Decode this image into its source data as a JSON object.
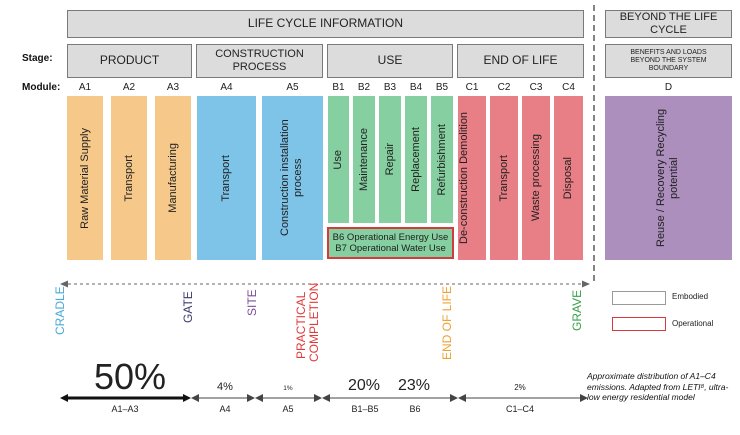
{
  "headers": {
    "life_cycle": "LIFE CYCLE INFORMATION",
    "beyond": "BEYOND THE LIFE CYCLE"
  },
  "row_labels": {
    "stage": "Stage:",
    "module": "Module:"
  },
  "stages": {
    "product": "PRODUCT",
    "construction": "CONSTRUCTION PROCESS",
    "use": "USE",
    "end_of_life": "END OF LIFE",
    "beyond": "BENEFITS AND LOADS BEYOND THE SYSTEM BOUNDARY"
  },
  "modules": [
    {
      "code": "A1",
      "label": "Raw Material Supply",
      "color": "#f6c98a"
    },
    {
      "code": "A2",
      "label": "Transport",
      "color": "#f6c98a"
    },
    {
      "code": "A3",
      "label": "Manufacturing",
      "color": "#f6c98a"
    },
    {
      "code": "A4",
      "label": "Transport",
      "color": "#7ec3e8"
    },
    {
      "code": "A5",
      "label": "Construction installation process",
      "color": "#7ec3e8"
    },
    {
      "code": "B1",
      "label": "Use",
      "color": "#86cfa0"
    },
    {
      "code": "B2",
      "label": "Maintenance",
      "color": "#86cfa0"
    },
    {
      "code": "B3",
      "label": "Repair",
      "color": "#86cfa0"
    },
    {
      "code": "B4",
      "label": "Replacement",
      "color": "#86cfa0"
    },
    {
      "code": "B5",
      "label": "Refurbishment",
      "color": "#86cfa0"
    },
    {
      "code": "C1",
      "label": "De-construction Demolition",
      "color": "#e87f86"
    },
    {
      "code": "C2",
      "label": "Transport",
      "color": "#e87f86"
    },
    {
      "code": "C3",
      "label": "Waste processing",
      "color": "#e87f86"
    },
    {
      "code": "C4",
      "label": "Disposal",
      "color": "#e87f86"
    },
    {
      "code": "D",
      "label": "Reuse / Recovery Recycling potential",
      "color": "#ad8fbe"
    }
  ],
  "operational": {
    "b6": "B6 Operational Energy Use",
    "b7": "B7 Operational Water Use"
  },
  "milestones": [
    {
      "label": "CRADLE",
      "color": "#4aa8d8"
    },
    {
      "label": "GATE",
      "color": "#3b3b6e"
    },
    {
      "label": "SITE",
      "color": "#7a4f9a"
    },
    {
      "label": "PRACTICAL COMPLETION",
      "color": "#e03a3a"
    },
    {
      "label": "END OF LIFE",
      "color": "#f0a030"
    },
    {
      "label": "GRAVE",
      "color": "#3aa04a"
    }
  ],
  "legend": {
    "embodied": "Embodied",
    "operational": "Operational",
    "embodied_color": "#9a9a9a",
    "operational_color": "#d63b3b"
  },
  "distribution": [
    {
      "pct": "50%",
      "label": "A1–A3"
    },
    {
      "pct": "4%",
      "label": "A4"
    },
    {
      "pct": "1%",
      "label": "A5"
    },
    {
      "pct": "20%",
      "label": "B1–B5"
    },
    {
      "pct": "23%",
      "label": "B6"
    },
    {
      "pct": "2%",
      "label": "C1–C4"
    }
  ],
  "note": "Approximate distribution of A1–C4 emissions. Adapted from LETI⁸, ultra-low energy residential model"
}
